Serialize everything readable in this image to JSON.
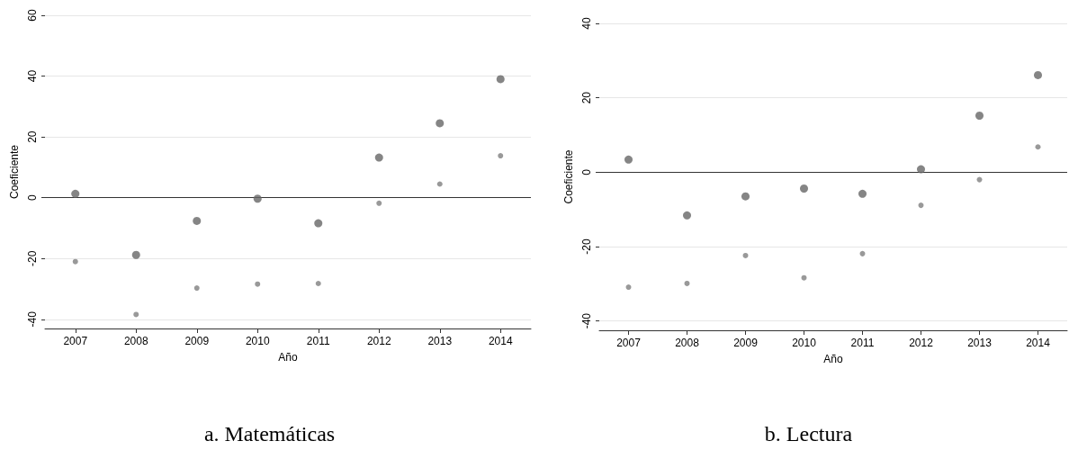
{
  "chart_data": [
    {
      "type": "scatter",
      "title": "a. Matemáticas",
      "xlabel": "Año",
      "ylabel": "Coeficiente",
      "categories": [
        "2007",
        "2008",
        "2009",
        "2010",
        "2011",
        "2012",
        "2013",
        "2014"
      ],
      "series": [
        {
          "color": "#666666",
          "values": [
            1.3,
            -18.8,
            -7.6,
            -0.3,
            -8.4,
            13.2,
            24.5,
            39.0
          ]
        },
        {
          "color": "#808080",
          "values": [
            -21.0,
            -38.4,
            -29.7,
            -28.4,
            -28.2,
            -1.8,
            4.5,
            13.8
          ]
        }
      ],
      "ylim": [
        -43,
        60
      ],
      "yticks": [
        -40,
        -20,
        0,
        20,
        40,
        60
      ],
      "grid": "y",
      "marker": "circle",
      "ref_lines": [
        {
          "axis": "y",
          "value": 0,
          "color": "#333333"
        }
      ]
    },
    {
      "type": "scatter",
      "title": "b. Lectura",
      "xlabel": "Año",
      "ylabel": "Coeficiente",
      "categories": [
        "2007",
        "2008",
        "2009",
        "2010",
        "2011",
        "2012",
        "2013",
        "2014"
      ],
      "series": [
        {
          "color": "#666666",
          "values": [
            3.4,
            -11.6,
            -6.5,
            -4.4,
            -5.8,
            0.8,
            15.2,
            26.1
          ]
        },
        {
          "color": "#808080",
          "values": [
            -30.9,
            -29.9,
            -22.4,
            -28.4,
            -21.9,
            -8.9,
            -2.0,
            6.8
          ]
        }
      ],
      "ylim": [
        -42.5,
        40
      ],
      "yticks": [
        -40,
        -20,
        0,
        20,
        40
      ],
      "grid": "y",
      "marker": "circle",
      "ref_lines": [
        {
          "axis": "y",
          "value": 0,
          "color": "#333333"
        }
      ]
    }
  ]
}
